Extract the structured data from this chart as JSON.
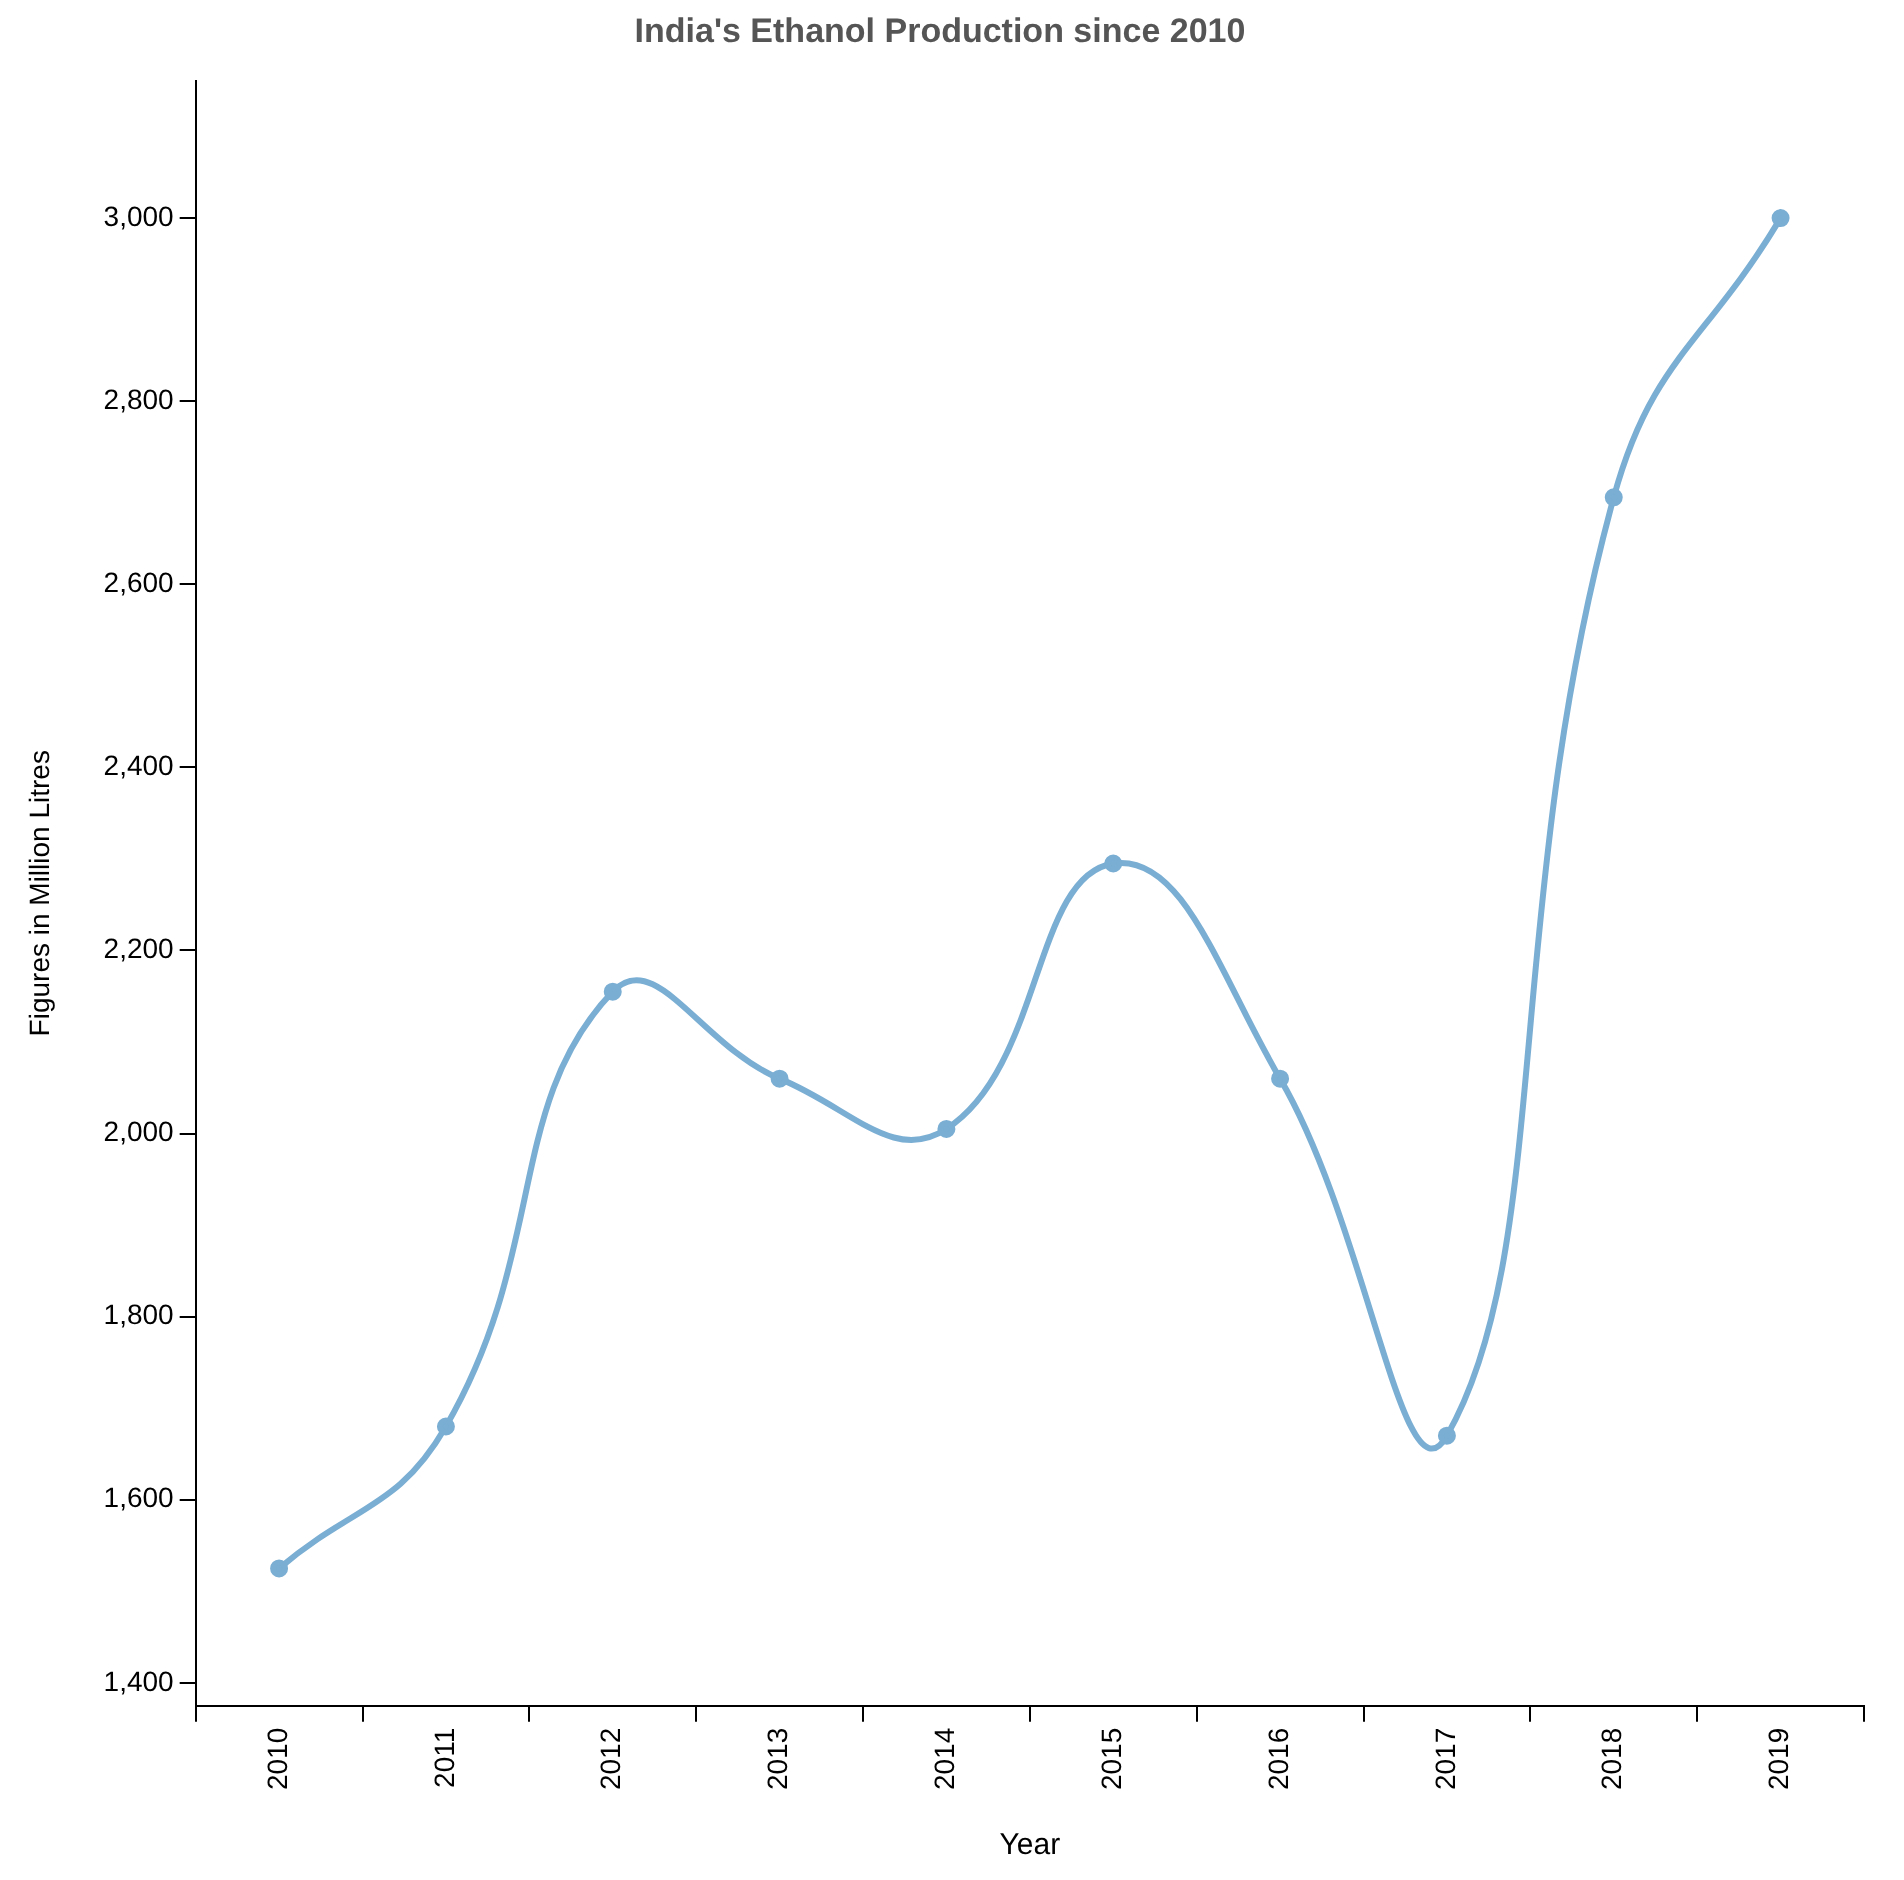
{
  "chart_data": {
    "type": "line",
    "title": "India's Ethanol Production since 2010",
    "xlabel": "Year",
    "ylabel": "Figures in Million Litres",
    "categories": [
      "2010",
      "2011",
      "2012",
      "2013",
      "2014",
      "2015",
      "2016",
      "2017",
      "2018",
      "2019"
    ],
    "series": [
      {
        "color": "#7aaed3",
        "values": [
          1525,
          1680,
          2155,
          2060,
          2005,
          2295,
          2060,
          1670,
          2695,
          3000
        ]
      }
    ],
    "ylim": [
      1375,
      3150
    ],
    "yticks": [
      {
        "value": 1400,
        "label": "1,400"
      },
      {
        "value": 1600,
        "label": "1,600"
      },
      {
        "value": 1800,
        "label": "1,800"
      },
      {
        "value": 2000,
        "label": "2,000"
      },
      {
        "value": 2200,
        "label": "2,200"
      },
      {
        "value": 2400,
        "label": "2,400"
      },
      {
        "value": 2600,
        "label": "2,600"
      },
      {
        "value": 2800,
        "label": "2,800"
      },
      {
        "value": 3000,
        "label": "3,000"
      }
    ],
    "grid": false,
    "legend": false,
    "marker": "circle",
    "line_style": "solid"
  }
}
